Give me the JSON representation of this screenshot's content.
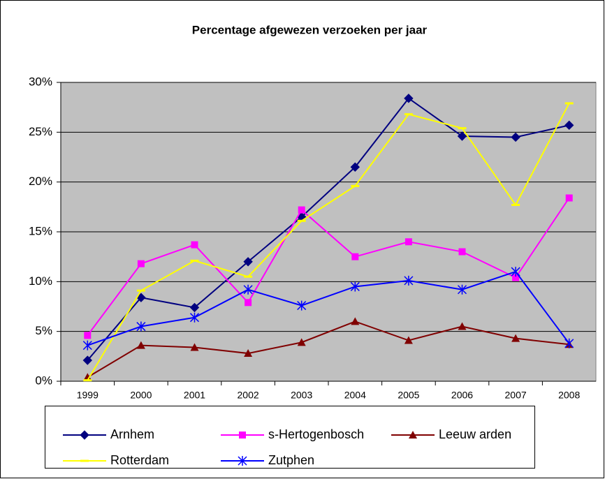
{
  "chart_data": {
    "type": "line",
    "title": "Percentage afgewezen verzoeken per jaar",
    "categories": [
      "1999",
      "2000",
      "2001",
      "2002",
      "2003",
      "2004",
      "2005",
      "2006",
      "2007",
      "2008"
    ],
    "series": [
      {
        "name": "Arnhem",
        "color": "#000080",
        "marker": "diamond",
        "values": [
          2.1,
          8.4,
          7.4,
          12.0,
          16.5,
          21.5,
          28.4,
          24.6,
          24.5,
          25.7
        ]
      },
      {
        "name": "s-Hertogenbosch",
        "color": "#ff00ff",
        "marker": "square",
        "values": [
          4.6,
          11.8,
          13.7,
          7.9,
          17.2,
          12.5,
          14.0,
          13.0,
          10.4,
          18.4
        ]
      },
      {
        "name": "Leeuw arden",
        "color": "#800000",
        "marker": "triangle",
        "values": [
          0.4,
          3.6,
          3.4,
          2.8,
          3.9,
          6.0,
          4.1,
          5.5,
          4.3,
          3.7
        ]
      },
      {
        "name": "Rotterdam",
        "color": "#ffff00",
        "marker": "dash",
        "values": [
          0.1,
          9.1,
          12.1,
          10.5,
          16.1,
          19.6,
          26.8,
          25.4,
          17.7,
          27.9
        ]
      },
      {
        "name": "Zutphen",
        "color": "#0000ff",
        "marker": "star",
        "values": [
          3.6,
          5.5,
          6.4,
          9.2,
          7.6,
          9.5,
          10.1,
          9.2,
          11.0,
          3.8
        ]
      }
    ],
    "ylim": [
      0,
      30
    ],
    "yticks": [
      {
        "value": 0,
        "label": "0%"
      },
      {
        "value": 5,
        "label": "5%"
      },
      {
        "value": 10,
        "label": "10%"
      },
      {
        "value": 15,
        "label": "15%"
      },
      {
        "value": 20,
        "label": "20%"
      },
      {
        "value": 25,
        "label": "25%"
      },
      {
        "value": 30,
        "label": "30%"
      }
    ],
    "grid": true,
    "legend": "bottom"
  }
}
